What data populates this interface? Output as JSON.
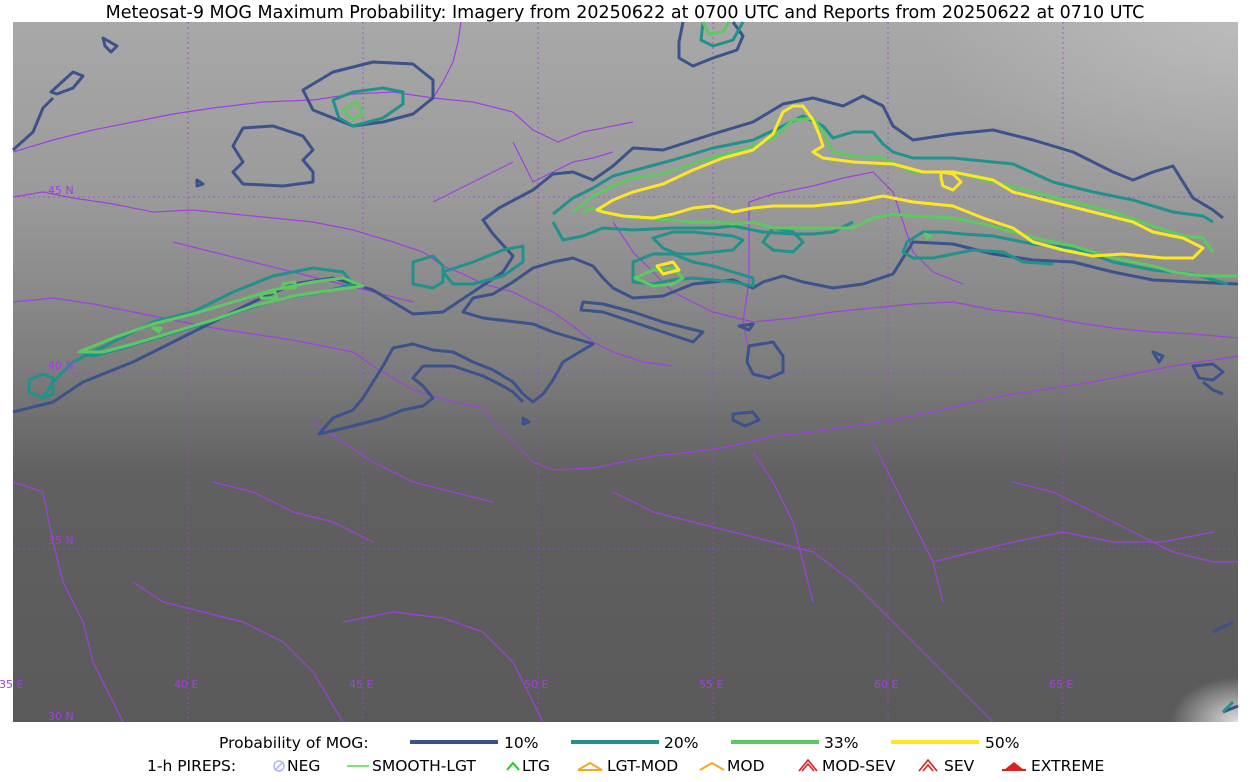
{
  "title": "Meteosat-9 MOG Maximum Probability: Imagery from 20250622 at 0700 UTC and Reports from 20250622 at 0710 UTC",
  "map": {
    "lat_labels": [
      "45 N",
      "40 N",
      "35 N",
      "30 N"
    ],
    "lon_labels": [
      "35 E",
      "40 E",
      "45 E",
      "50 E",
      "55 E",
      "60 E",
      "65 E"
    ],
    "colors": {
      "p10": "#3b528b",
      "p20": "#21918c",
      "p33": "#5ec962",
      "p50": "#fde725",
      "borders": "#a040e0",
      "grid": "#a040e0"
    }
  },
  "legend": {
    "probability": {
      "label": "Probability of MOG:",
      "items": [
        {
          "label": "10%",
          "color": "#3b528b"
        },
        {
          "label": "20%",
          "color": "#21918c"
        },
        {
          "label": "33%",
          "color": "#5ec962"
        },
        {
          "label": "50%",
          "color": "#fde725"
        }
      ]
    },
    "pireps": {
      "label": "1-h PIREPS:",
      "items": [
        {
          "label": "NEG",
          "icon": "neg-circle-icon",
          "color": "#b0b0ff"
        },
        {
          "label": "SMOOTH-LGT",
          "icon": "smooth-light-line-icon",
          "color": "#44dd44"
        },
        {
          "label": "LTG",
          "icon": "light-chevron-icon",
          "color": "#22cc22"
        },
        {
          "label": "LGT-MOD",
          "icon": "light-moderate-icon",
          "color": "#f5a623"
        },
        {
          "label": "MOD",
          "icon": "moderate-chevron-icon",
          "color": "#f5a623"
        },
        {
          "label": "MOD-SEV",
          "icon": "moderate-severe-icon",
          "color": "#e02020"
        },
        {
          "label": "SEV",
          "icon": "severe-icon",
          "color": "#e02020"
        },
        {
          "label": "EXTREME",
          "icon": "extreme-icon",
          "color": "#e02020"
        }
      ]
    }
  }
}
